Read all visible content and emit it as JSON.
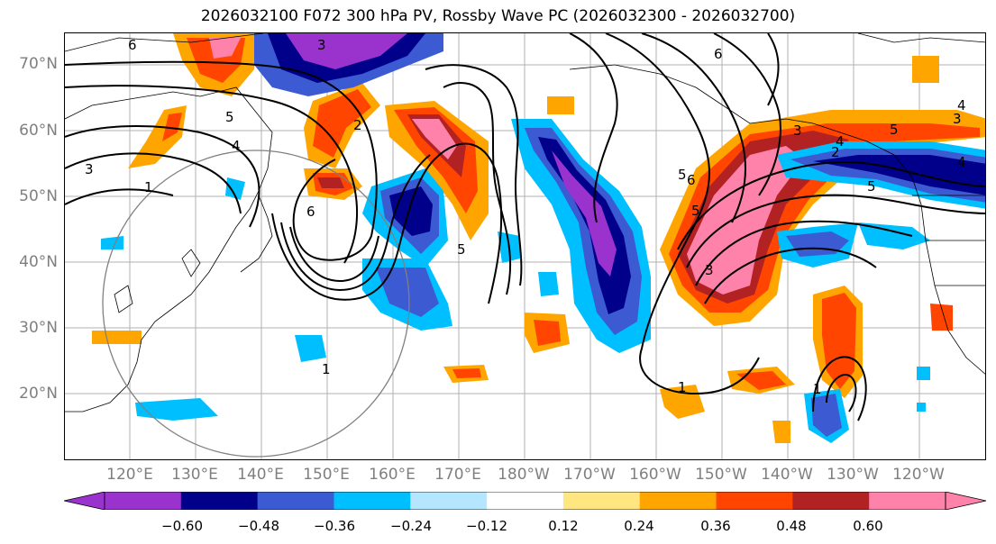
{
  "title": "2026032100 F072 300 hPa PV, Rossby Wave PC (2026032300 - 2026032700)",
  "lat_labels": [
    "70°N",
    "60°N",
    "50°N",
    "40°N",
    "30°N",
    "20°N"
  ],
  "lon_labels": [
    "120°E",
    "130°E",
    "140°E",
    "150°E",
    "160°E",
    "170°E",
    "180°W",
    "170°W",
    "160°W",
    "150°W",
    "140°W",
    "130°W",
    "120°W"
  ],
  "colorbar": {
    "ticks": [
      "−0.60",
      "−0.48",
      "−0.36",
      "−0.24",
      "−0.12",
      "0.12",
      "0.24",
      "0.36",
      "0.48",
      "0.60"
    ],
    "colors": [
      "#9a32cd",
      "#00008b",
      "#3c5ad2",
      "#00bfff",
      "#b4e6ff",
      "#ffffff",
      "#ffe680",
      "#ffa500",
      "#ff4500",
      "#b22222",
      "#ff82ab"
    ]
  },
  "contour_labels": [
    "6",
    "3",
    "5",
    "4",
    "3",
    "1",
    "6",
    "2",
    "5",
    "5",
    "6",
    "5",
    "3",
    "1",
    "3",
    "4",
    "5",
    "5",
    "2",
    "3",
    "1",
    "1",
    "6",
    "4",
    "4"
  ]
}
